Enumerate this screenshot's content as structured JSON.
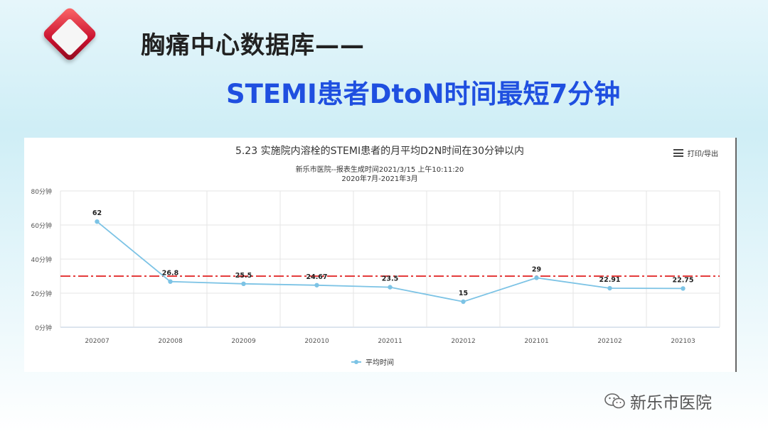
{
  "slide": {
    "title": "胸痛中心数据库——",
    "subtitle": "STEMI患者DtoN时间最短7分钟",
    "watermark": "新乐市医院"
  },
  "menu_label": "打印/导出",
  "chart_data": {
    "type": "line",
    "title": "5.23 实施院内溶栓的STEMI患者的月平均D2N时间在30分钟以内",
    "subtitle_lines": [
      "新乐市医院--报表生成时间2021/3/15 上午10:11:20",
      "2020年7月-2021年3月"
    ],
    "categories": [
      "202007",
      "202008",
      "202009",
      "202010",
      "202011",
      "202012",
      "202101",
      "202102",
      "202103"
    ],
    "series": [
      {
        "name": "平均时间",
        "values": [
          62,
          26.8,
          25.5,
          24.67,
          23.5,
          15,
          29,
          22.91,
          22.75
        ],
        "color": "#7cc3e5"
      }
    ],
    "data_labels": [
      "62",
      "26.8",
      "25.5",
      "24.67",
      "23.5",
      "15",
      "29",
      "22.91",
      "22.75"
    ],
    "y_ticks": [
      0,
      20,
      40,
      60,
      80
    ],
    "y_tick_labels": [
      "0分钟",
      "20分钟",
      "40分钟",
      "60分钟",
      "80分钟"
    ],
    "ylim": [
      0,
      80
    ],
    "reference_line": {
      "value": 30,
      "color": "#e02020",
      "style": "dash-dot"
    },
    "grid": true,
    "legend": "bottom-center"
  }
}
